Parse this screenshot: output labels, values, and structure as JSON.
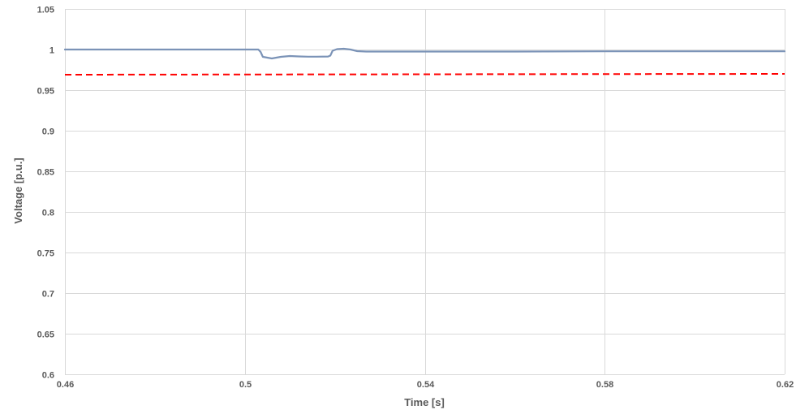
{
  "chart_data": {
    "type": "line",
    "title": "",
    "xlabel": "Time [s]",
    "ylabel": "Voltage [p.u.]",
    "xlim": [
      0.46,
      0.62
    ],
    "ylim": [
      0.6,
      1.05
    ],
    "xticks": [
      0.46,
      0.5,
      0.54,
      0.58,
      0.62
    ],
    "xtick_labels": [
      "0.46",
      "0.5",
      "0.54",
      "0.58",
      "0.62"
    ],
    "yticks": [
      0.6,
      0.65,
      0.7,
      0.75,
      0.8,
      0.85,
      0.9,
      0.95,
      1.0,
      1.05
    ],
    "ytick_labels": [
      "0.6",
      "0.65",
      "0.7",
      "0.75",
      "0.8",
      "0.85",
      "0.9",
      "0.95",
      "1",
      "1.05"
    ],
    "grid": true,
    "legend": "none",
    "series": [
      {
        "color": "#7b93b7",
        "style": "solid",
        "x": [
          0.46,
          0.5,
          0.503,
          0.5035,
          0.504,
          0.506,
          0.508,
          0.51,
          0.512,
          0.514,
          0.516,
          0.5185,
          0.519,
          0.5195,
          0.5205,
          0.522,
          0.5235,
          0.525,
          0.527,
          0.53,
          0.54,
          0.56,
          0.58,
          0.6,
          0.62
        ],
        "y": [
          1.0,
          1.0,
          1.0,
          0.997,
          0.991,
          0.989,
          0.991,
          0.992,
          0.9915,
          0.9912,
          0.9912,
          0.9914,
          0.9925,
          0.9985,
          1.0005,
          1.001,
          1.0,
          0.998,
          0.9975,
          0.9975,
          0.9975,
          0.9975,
          0.9978,
          0.9978,
          0.9978
        ]
      },
      {
        "color": "#ff0000",
        "style": "dashed",
        "x": [
          0.46,
          0.62
        ],
        "y": [
          0.969,
          0.97
        ]
      }
    ]
  }
}
